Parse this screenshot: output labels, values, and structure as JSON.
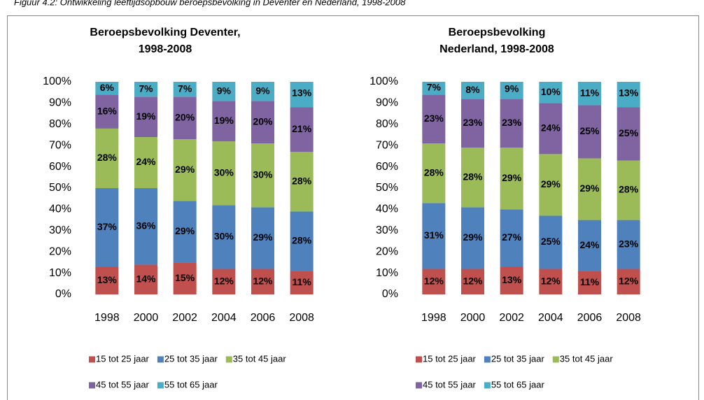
{
  "caption": "Figuur 4.2: Ontwikkeling leeftijdsopbouw beroepsbevolking in Deventer en Nederland, 1998-2008",
  "chart_data": [
    {
      "type": "stacked_bar",
      "title": [
        "Beroepsbevolking Deventer,",
        "1998-2008"
      ],
      "categories": [
        "1998",
        "2000",
        "2002",
        "2004",
        "2006",
        "2008"
      ],
      "ylim": [
        0,
        100
      ],
      "yticks": [
        {
          "value": 0,
          "label": "0%"
        },
        {
          "value": 10,
          "label": "10%"
        },
        {
          "value": 20,
          "label": "20%"
        },
        {
          "value": 30,
          "label": "30%"
        },
        {
          "value": 40,
          "label": "40%"
        },
        {
          "value": 50,
          "label": "50%"
        },
        {
          "value": 60,
          "label": "60%"
        },
        {
          "value": 70,
          "label": "70%"
        },
        {
          "value": 80,
          "label": "80%"
        },
        {
          "value": 90,
          "label": "90%"
        },
        {
          "value": 100,
          "label": "100%"
        }
      ],
      "legend": "bottom",
      "series": [
        {
          "name": "15 tot 25 jaar",
          "color": "#c0504d",
          "values": [
            13,
            14,
            15,
            12,
            12,
            11
          ],
          "value_labels": [
            "13%",
            "14%",
            "15%",
            "12%",
            "12%",
            "11%"
          ]
        },
        {
          "name": "25 tot 35 jaar",
          "color": "#4f81bd",
          "values": [
            37,
            36,
            29,
            30,
            29,
            28
          ],
          "value_labels": [
            "37%",
            "36%",
            "29%",
            "30%",
            "29%",
            "28%"
          ]
        },
        {
          "name": "35 tot 45 jaar",
          "color": "#9bbb59",
          "values": [
            28,
            24,
            29,
            30,
            30,
            28
          ],
          "value_labels": [
            "28%",
            "24%",
            "29%",
            "30%",
            "30%",
            "28%"
          ]
        },
        {
          "name": "45 tot 55 jaar",
          "color": "#8064a2",
          "values": [
            16,
            19,
            20,
            19,
            20,
            21
          ],
          "value_labels": [
            "16%",
            "19%",
            "20%",
            "19%",
            "20%",
            "21%"
          ]
        },
        {
          "name": "55 tot 65 jaar",
          "color": "#4bacc6",
          "values": [
            6,
            7,
            7,
            9,
            9,
            13
          ],
          "value_labels": [
            "6%",
            "7%",
            "7%",
            "9%",
            "9%",
            "13%"
          ]
        }
      ]
    },
    {
      "type": "stacked_bar",
      "title": [
        "Beroepsbevolking",
        "Nederland, 1998-2008"
      ],
      "categories": [
        "1998",
        "2000",
        "2002",
        "2004",
        "2006",
        "2008"
      ],
      "ylim": [
        0,
        100
      ],
      "yticks": [
        {
          "value": 0,
          "label": "0%"
        },
        {
          "value": 10,
          "label": "10%"
        },
        {
          "value": 20,
          "label": "20%"
        },
        {
          "value": 30,
          "label": "30%"
        },
        {
          "value": 40,
          "label": "40%"
        },
        {
          "value": 50,
          "label": "50%"
        },
        {
          "value": 60,
          "label": "60%"
        },
        {
          "value": 70,
          "label": "70%"
        },
        {
          "value": 80,
          "label": "80%"
        },
        {
          "value": 90,
          "label": "90%"
        },
        {
          "value": 100,
          "label": "100%"
        }
      ],
      "legend": "bottom",
      "series": [
        {
          "name": "15 tot 25 jaar",
          "color": "#c0504d",
          "values": [
            12,
            12,
            13,
            12,
            11,
            12
          ],
          "value_labels": [
            "12%",
            "12%",
            "13%",
            "12%",
            "11%",
            "12%"
          ]
        },
        {
          "name": "25 tot 35 jaar",
          "color": "#4f81bd",
          "values": [
            31,
            29,
            27,
            25,
            24,
            23
          ],
          "value_labels": [
            "31%",
            "29%",
            "27%",
            "25%",
            "24%",
            "23%"
          ]
        },
        {
          "name": "35 tot 45 jaar",
          "color": "#9bbb59",
          "values": [
            28,
            28,
            29,
            29,
            29,
            28
          ],
          "value_labels": [
            "28%",
            "28%",
            "29%",
            "29%",
            "29%",
            "28%"
          ]
        },
        {
          "name": "45 tot 55 jaar",
          "color": "#8064a2",
          "values": [
            23,
            23,
            23,
            24,
            25,
            25
          ],
          "value_labels": [
            "23%",
            "23%",
            "23%",
            "24%",
            "25%",
            "25%"
          ]
        },
        {
          "name": "55 tot 65 jaar",
          "color": "#4bacc6",
          "values": [
            7,
            8,
            9,
            10,
            11,
            13
          ],
          "value_labels": [
            "7%",
            "8%",
            "9%",
            "10%",
            "11%",
            "13%"
          ]
        }
      ]
    }
  ]
}
